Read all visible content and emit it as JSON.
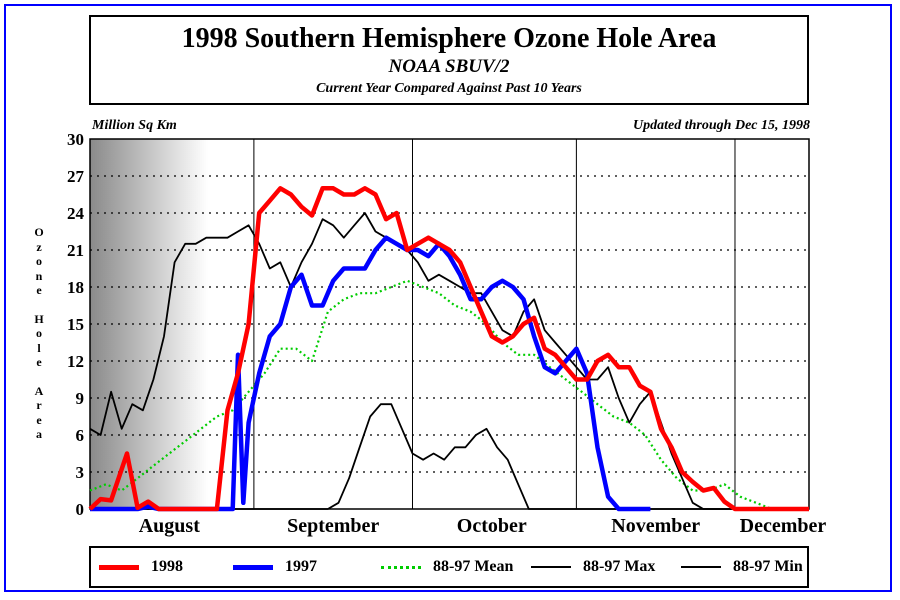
{
  "chart_data": {
    "type": "line",
    "title": "1998 Southern Hemisphere Ozone Hole Area",
    "subtitle": "NOAA SBUV/2",
    "subtitle2": "Current Year Compared Against Past 10 Years",
    "units_label": "Million Sq Km",
    "updated": "Updated through Dec 15, 1998",
    "ylabel": "Ozone Hole Area",
    "ylim": [
      0,
      30
    ],
    "yticks": [
      0,
      3,
      6,
      9,
      12,
      15,
      18,
      21,
      24,
      27,
      30
    ],
    "x_domain": [
      "Aug 1",
      "Dec 15"
    ],
    "month_labels": [
      "August",
      "September",
      "October",
      "November",
      "December"
    ],
    "grid": "dotted horizontal at each tick; vertical lines at month boundaries",
    "legend_position": "bottom",
    "series": [
      {
        "name": "1998",
        "color": "#ff0000",
        "style": "thick",
        "x": [
          "Aug 1",
          "Aug 3",
          "Aug 5",
          "Aug 8",
          "Aug 10",
          "Aug 12",
          "Aug 14",
          "Aug 16",
          "Aug 17",
          "Aug 20",
          "Aug 22",
          "Aug 23",
          "Aug 25",
          "Aug 27",
          "Aug 29",
          "Aug 31",
          "Sep 2",
          "Sep 4",
          "Sep 6",
          "Sep 8",
          "Sep 10",
          "Sep 12",
          "Sep 14",
          "Sep 16",
          "Sep 18",
          "Sep 20",
          "Sep 22",
          "Sep 24",
          "Sep 26",
          "Sep 28",
          "Sep 30",
          "Oct 2",
          "Oct 4",
          "Oct 6",
          "Oct 8",
          "Oct 10",
          "Oct 12",
          "Oct 14",
          "Oct 16",
          "Oct 18",
          "Oct 20",
          "Oct 22",
          "Oct 24",
          "Oct 26",
          "Oct 28",
          "Oct 30",
          "Nov 1",
          "Nov 3",
          "Nov 5",
          "Nov 7",
          "Nov 9",
          "Nov 11",
          "Nov 13",
          "Nov 15",
          "Nov 17",
          "Nov 19",
          "Nov 21",
          "Nov 23",
          "Nov 25",
          "Nov 27",
          "Nov 29",
          "Dec 1",
          "Dec 3",
          "Dec 5",
          "Dec 7",
          "Dec 9",
          "Dec 11",
          "Dec 13",
          "Dec 15"
        ],
        "y": [
          0,
          0.8,
          0.7,
          4.5,
          0.1,
          0.6,
          0,
          0,
          0,
          0,
          0,
          0,
          0,
          8,
          11,
          15,
          24,
          25,
          26,
          25.5,
          24.5,
          23.8,
          26,
          26,
          25.5,
          25.5,
          26,
          25.5,
          23.5,
          24,
          21,
          21.5,
          22,
          21.5,
          21,
          20,
          18,
          16,
          14,
          13.5,
          14,
          15,
          15.5,
          13,
          12.5,
          11.5,
          10.5,
          10.5,
          12,
          12.5,
          11.5,
          11.5,
          10,
          9.5,
          6.5,
          5,
          3,
          2.2,
          1.5,
          1.7,
          0.6,
          0,
          0,
          0,
          0,
          0,
          0,
          0,
          0
        ]
      },
      {
        "name": "1997",
        "color": "#0000ff",
        "style": "thick",
        "x": [
          "Aug 1",
          "Aug 10",
          "Aug 12",
          "Aug 14",
          "Aug 16",
          "Aug 28",
          "Aug 29",
          "Aug 30",
          "Aug 31",
          "Sep 2",
          "Sep 4",
          "Sep 6",
          "Sep 8",
          "Sep 10",
          "Sep 12",
          "Sep 14",
          "Sep 16",
          "Sep 18",
          "Sep 20",
          "Sep 22",
          "Sep 24",
          "Sep 26",
          "Sep 28",
          "Sep 30",
          "Oct 2",
          "Oct 4",
          "Oct 6",
          "Oct 8",
          "Oct 10",
          "Oct 12",
          "Oct 14",
          "Oct 16",
          "Oct 18",
          "Oct 20",
          "Oct 22",
          "Oct 24",
          "Oct 26",
          "Oct 28",
          "Oct 30",
          "Nov 1",
          "Nov 3",
          "Nov 5",
          "Nov 7",
          "Nov 9",
          "Nov 11",
          "Nov 13",
          "Nov 15"
        ],
        "y": [
          0,
          0,
          0.2,
          0,
          0,
          0,
          12.5,
          0.5,
          7,
          11,
          14,
          15,
          18,
          19,
          16.5,
          16.5,
          18.5,
          19.5,
          19.5,
          19.5,
          21,
          22,
          21.5,
          21,
          21,
          20.5,
          21.5,
          20.5,
          19,
          17,
          17,
          18,
          18.5,
          18,
          17,
          14,
          11.5,
          11,
          12,
          13,
          11,
          5,
          1,
          0,
          0,
          0,
          0
        ]
      },
      {
        "name": "88-97 Mean",
        "color": "#00cc00",
        "style": "dotted",
        "x": [
          "Aug 1",
          "Aug 4",
          "Aug 7",
          "Aug 10",
          "Aug 13",
          "Aug 16",
          "Aug 19",
          "Aug 22",
          "Aug 25",
          "Aug 28",
          "Aug 31",
          "Sep 3",
          "Sep 6",
          "Sep 9",
          "Sep 12",
          "Sep 15",
          "Sep 18",
          "Sep 21",
          "Sep 24",
          "Sep 27",
          "Sep 30",
          "Oct 3",
          "Oct 6",
          "Oct 9",
          "Oct 12",
          "Oct 15",
          "Oct 18",
          "Oct 21",
          "Oct 24",
          "Oct 27",
          "Oct 30",
          "Nov 2",
          "Nov 5",
          "Nov 8",
          "Nov 11",
          "Nov 14",
          "Nov 17",
          "Nov 20",
          "Nov 23",
          "Nov 26",
          "Nov 29",
          "Dec 2",
          "Dec 5",
          "Dec 8",
          "Dec 11",
          "Dec 14"
        ],
        "y": [
          1.5,
          2,
          1.5,
          2.5,
          3.5,
          4.5,
          5.5,
          6.5,
          7.5,
          8,
          9.5,
          11,
          13,
          13,
          12,
          16,
          17,
          17.5,
          17.5,
          18,
          18.5,
          18,
          17.5,
          16.5,
          16,
          15,
          13.5,
          12.5,
          12.5,
          11.5,
          10.5,
          9.5,
          8.5,
          7.5,
          7,
          6,
          4,
          2.5,
          1.5,
          1.5,
          2,
          1,
          0.5,
          0,
          0,
          0
        ]
      },
      {
        "name": "88-97 Max",
        "color": "#000000",
        "style": "thin",
        "x": [
          "Aug 1",
          "Aug 3",
          "Aug 5",
          "Aug 7",
          "Aug 9",
          "Aug 11",
          "Aug 13",
          "Aug 15",
          "Aug 17",
          "Aug 19",
          "Aug 21",
          "Aug 23",
          "Aug 25",
          "Aug 27",
          "Aug 29",
          "Aug 31",
          "Sep 2",
          "Sep 4",
          "Sep 6",
          "Sep 8",
          "Sep 10",
          "Sep 12",
          "Sep 14",
          "Sep 16",
          "Sep 18",
          "Sep 20",
          "Sep 22",
          "Sep 24",
          "Sep 26",
          "Sep 28",
          "Sep 30",
          "Oct 2",
          "Oct 4",
          "Oct 6",
          "Oct 8",
          "Oct 10",
          "Oct 12",
          "Oct 14",
          "Oct 16",
          "Oct 18",
          "Oct 20",
          "Oct 22",
          "Oct 24",
          "Oct 26",
          "Oct 28",
          "Oct 30",
          "Nov 1",
          "Nov 3",
          "Nov 5",
          "Nov 7",
          "Nov 9",
          "Nov 11",
          "Nov 13",
          "Nov 15",
          "Nov 17",
          "Nov 19",
          "Nov 21",
          "Nov 23",
          "Nov 25",
          "Nov 27",
          "Nov 29",
          "Dec 1",
          "Dec 3",
          "Dec 5"
        ],
        "y": [
          6.5,
          6,
          9.5,
          6.5,
          8.5,
          8,
          10.5,
          14,
          20,
          21.5,
          21.5,
          22,
          22,
          22,
          22.5,
          23,
          21.5,
          19.5,
          20,
          18,
          20,
          21.5,
          23.5,
          23,
          22,
          23,
          24,
          22.5,
          22,
          21.5,
          21,
          20,
          18.5,
          19,
          18.5,
          18,
          17.5,
          17.5,
          16,
          14.5,
          14,
          16,
          17,
          14.5,
          13.5,
          12.5,
          11.5,
          10.5,
          10.5,
          11.5,
          9,
          7,
          8.5,
          9.5,
          7,
          4.5,
          2.5,
          0.5,
          0,
          0,
          0,
          0,
          0,
          0
        ]
      },
      {
        "name": "88-97 Min",
        "color": "#000000",
        "style": "thin",
        "x": [
          "Aug 1",
          "Sep 1",
          "Sep 3",
          "Sep 5",
          "Sep 7",
          "Sep 9",
          "Sep 11",
          "Sep 13",
          "Sep 15",
          "Sep 17",
          "Sep 19",
          "Sep 21",
          "Sep 23",
          "Sep 25",
          "Sep 27",
          "Sep 29",
          "Oct 1",
          "Oct 3",
          "Oct 5",
          "Oct 7",
          "Oct 9",
          "Oct 11",
          "Oct 13",
          "Oct 15",
          "Oct 17",
          "Oct 19",
          "Oct 21",
          "Oct 23",
          "Nov 1",
          "Dec 15"
        ],
        "y": [
          0,
          0,
          0,
          0,
          0,
          0,
          0,
          0,
          0,
          0.5,
          2.5,
          5,
          7.5,
          8.5,
          8.5,
          6.5,
          4.5,
          4,
          4.5,
          4,
          5,
          5,
          6,
          6.5,
          5,
          4,
          2,
          0,
          0,
          0
        ]
      }
    ],
    "legend": [
      {
        "label": "1998",
        "color": "#ff0000",
        "style": "thick"
      },
      {
        "label": "1997",
        "color": "#0000ff",
        "style": "thick"
      },
      {
        "label": "88-97 Mean",
        "color": "#00cc00",
        "style": "dotted"
      },
      {
        "label": "88-97 Max",
        "color": "#000000",
        "style": "thin"
      },
      {
        "label": "88-97 Min",
        "color": "#000000",
        "style": "thin"
      }
    ]
  }
}
